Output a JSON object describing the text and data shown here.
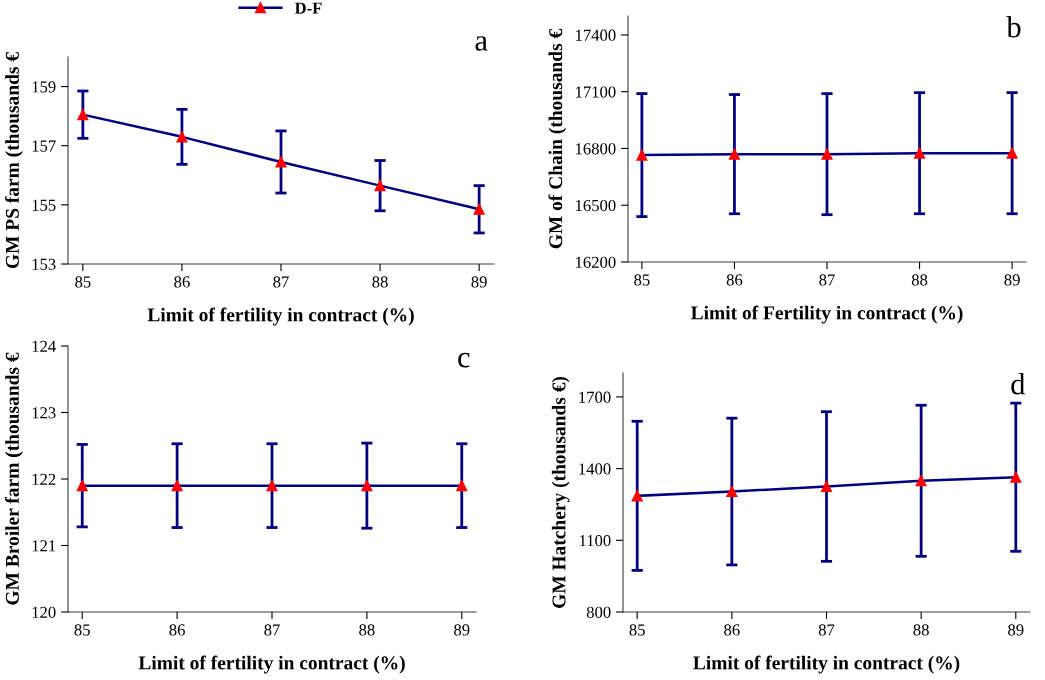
{
  "chart_data": [
    {
      "type": "line",
      "categories": [
        "85",
        "86",
        "87",
        "88",
        "89"
      ],
      "xlabel": "Limit of fertility in contract (%)",
      "ylabel": "GM PS farm (thousands €",
      "ylim": [
        153,
        160
      ],
      "yticks": [
        153,
        155,
        157,
        159
      ],
      "annotations": [
        "a"
      ],
      "legend": "top",
      "marker": "triangle",
      "grid": false,
      "series": [
        {
          "name": "D-F",
          "color": "#000080",
          "values": [
            158.05,
            157.3,
            156.45,
            155.65,
            154.85
          ],
          "errors": [
            0.8,
            0.93,
            1.05,
            0.85,
            0.8
          ]
        }
      ]
    },
    {
      "type": "line",
      "categories": [
        "85",
        "86",
        "87",
        "88",
        "89"
      ],
      "xlabel": "Limit of Fertility in contract (%)",
      "ylabel": "GM of Chain (thousands €",
      "ylim": [
        16200,
        17500
      ],
      "yticks": [
        16200,
        16500,
        16800,
        17100,
        17400
      ],
      "annotations": [
        "b"
      ],
      "legend": false,
      "marker": "triangle",
      "grid": false,
      "series": [
        {
          "color": "#000080",
          "values": [
            16765,
            16770,
            16770,
            16775,
            16775
          ],
          "errors": [
            325,
            315,
            320,
            320,
            320
          ]
        }
      ]
    },
    {
      "type": "line",
      "categories": [
        "85",
        "86",
        "87",
        "88",
        "89"
      ],
      "xlabel": "Limit of fertility in contract (%)",
      "ylabel": "GM Broiler farm (thousands €",
      "ylim": [
        120,
        124
      ],
      "yticks": [
        120,
        121,
        122,
        123,
        124
      ],
      "annotations": [
        "c"
      ],
      "legend": false,
      "marker": "triangle",
      "grid": false,
      "series": [
        {
          "color": "#000080",
          "values": [
            121.9,
            121.9,
            121.9,
            121.9,
            121.9
          ],
          "errors": [
            0.62,
            0.63,
            0.63,
            0.64,
            0.63
          ]
        }
      ]
    },
    {
      "type": "line",
      "categories": [
        "85",
        "86",
        "87",
        "88",
        "89"
      ],
      "xlabel": "Limit of fertility in contract (%)",
      "ylabel": "GM Hatchery (thousands €)",
      "ylim": [
        800,
        1800
      ],
      "yticks": [
        800,
        1100,
        1400,
        1700
      ],
      "annotations": [
        "d"
      ],
      "legend": false,
      "marker": "triangle",
      "grid": false,
      "series": [
        {
          "color": "#000080",
          "values": [
            1286,
            1304,
            1325,
            1349,
            1364
          ],
          "errors": [
            312,
            307,
            313,
            316,
            310
          ]
        }
      ]
    }
  ]
}
